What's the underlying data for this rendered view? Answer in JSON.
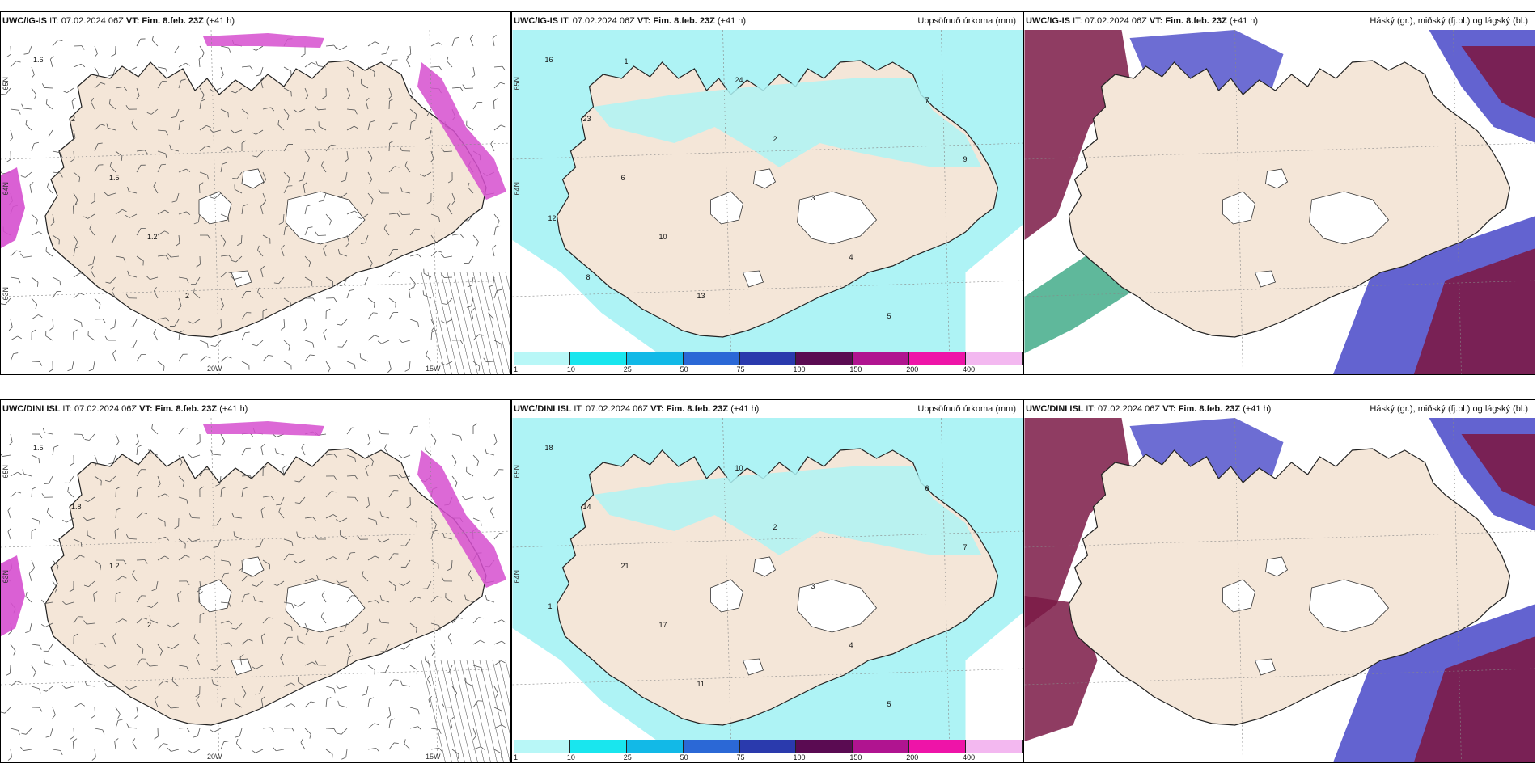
{
  "panels": [
    {
      "id": "p1",
      "model": "UWC/IG-IS",
      "it": "IT: 07.02.2024 06Z",
      "vt": "VT: Fim. 8.feb. 23Z",
      "lead": "(+41 h)",
      "right_title": "",
      "kind": "wind",
      "lat_labels": [
        "65N",
        "64N",
        "63N"
      ],
      "lon_labels": [
        "20W",
        "15W"
      ],
      "values": [
        "1.6",
        "2",
        "1.5",
        "1.2",
        "2"
      ]
    },
    {
      "id": "p2",
      "model": "UWC/IG-IS",
      "it": "IT: 07.02.2024 06Z",
      "vt": "VT: Fim. 8.feb. 23Z",
      "lead": "(+41 h)",
      "right_title": "Uppsöfnuð úrkoma (mm)",
      "kind": "precip",
      "lat_labels": [
        "65N",
        "64N"
      ],
      "values": [
        "16",
        "23",
        "6",
        "10",
        "13",
        "24",
        "2",
        "3",
        "4",
        "5",
        "7",
        "9",
        "12",
        "8",
        "1"
      ]
    },
    {
      "id": "p3",
      "model": "UWC/IG-IS",
      "it": "IT: 07.02.2024 06Z",
      "vt": "VT: Fim. 8.feb. 23Z",
      "lead": "(+41 h)",
      "right_title": "Háský (gr.), miðský (fj.bl.) og lágský (bl.)",
      "kind": "clouds"
    },
    {
      "id": "p4",
      "model": "UWC/DINI ISL",
      "it": "IT: 07.02.2024 06Z",
      "vt": "VT: Fim. 8.feb. 23Z",
      "lead": "(+41 h)",
      "right_title": "",
      "kind": "wind",
      "lat_labels": [
        "65N",
        "63N"
      ],
      "lon_labels": [
        "20W",
        "15W"
      ],
      "values": [
        "1.5",
        "1.8",
        "1.2",
        "2"
      ]
    },
    {
      "id": "p5",
      "model": "UWC/DINI ISL",
      "it": "IT: 07.02.2024 06Z",
      "vt": "VT: Fim. 8.feb. 23Z",
      "lead": "(+41 h)",
      "right_title": "Uppsöfnuð úrkoma (mm)",
      "kind": "precip",
      "lat_labels": [
        "65N",
        "64N"
      ],
      "values": [
        "18",
        "14",
        "21",
        "17",
        "11",
        "10",
        "2",
        "3",
        "4",
        "5",
        "6",
        "7",
        "1"
      ]
    },
    {
      "id": "p6",
      "model": "UWC/DINI ISL",
      "it": "IT: 07.02.2024 06Z",
      "vt": "VT: Fim. 8.feb. 23Z",
      "lead": "(+41 h)",
      "right_title": "Háský (gr.), miðský (fj.bl.) og lágský (bl.)",
      "kind": "clouds"
    }
  ],
  "legend": {
    "ticks": [
      "1",
      "10",
      "25",
      "50",
      "75",
      "100",
      "150",
      "200",
      "400"
    ],
    "colors": [
      "#b8f7f7",
      "#19e6ee",
      "#12b9e7",
      "#2b68d6",
      "#2a3aad",
      "#5a0b52",
      "#b01490",
      "#ee14a8",
      "#f3b8f0"
    ]
  },
  "colors": {
    "land": "#f4e6d8",
    "precip_light": "#aef3f5",
    "cloud_high": "#7b1a47",
    "cloud_mid": "#4848c8",
    "cloud_low_green": "#2aa07a",
    "wind_magenta": "#d64fcf"
  }
}
